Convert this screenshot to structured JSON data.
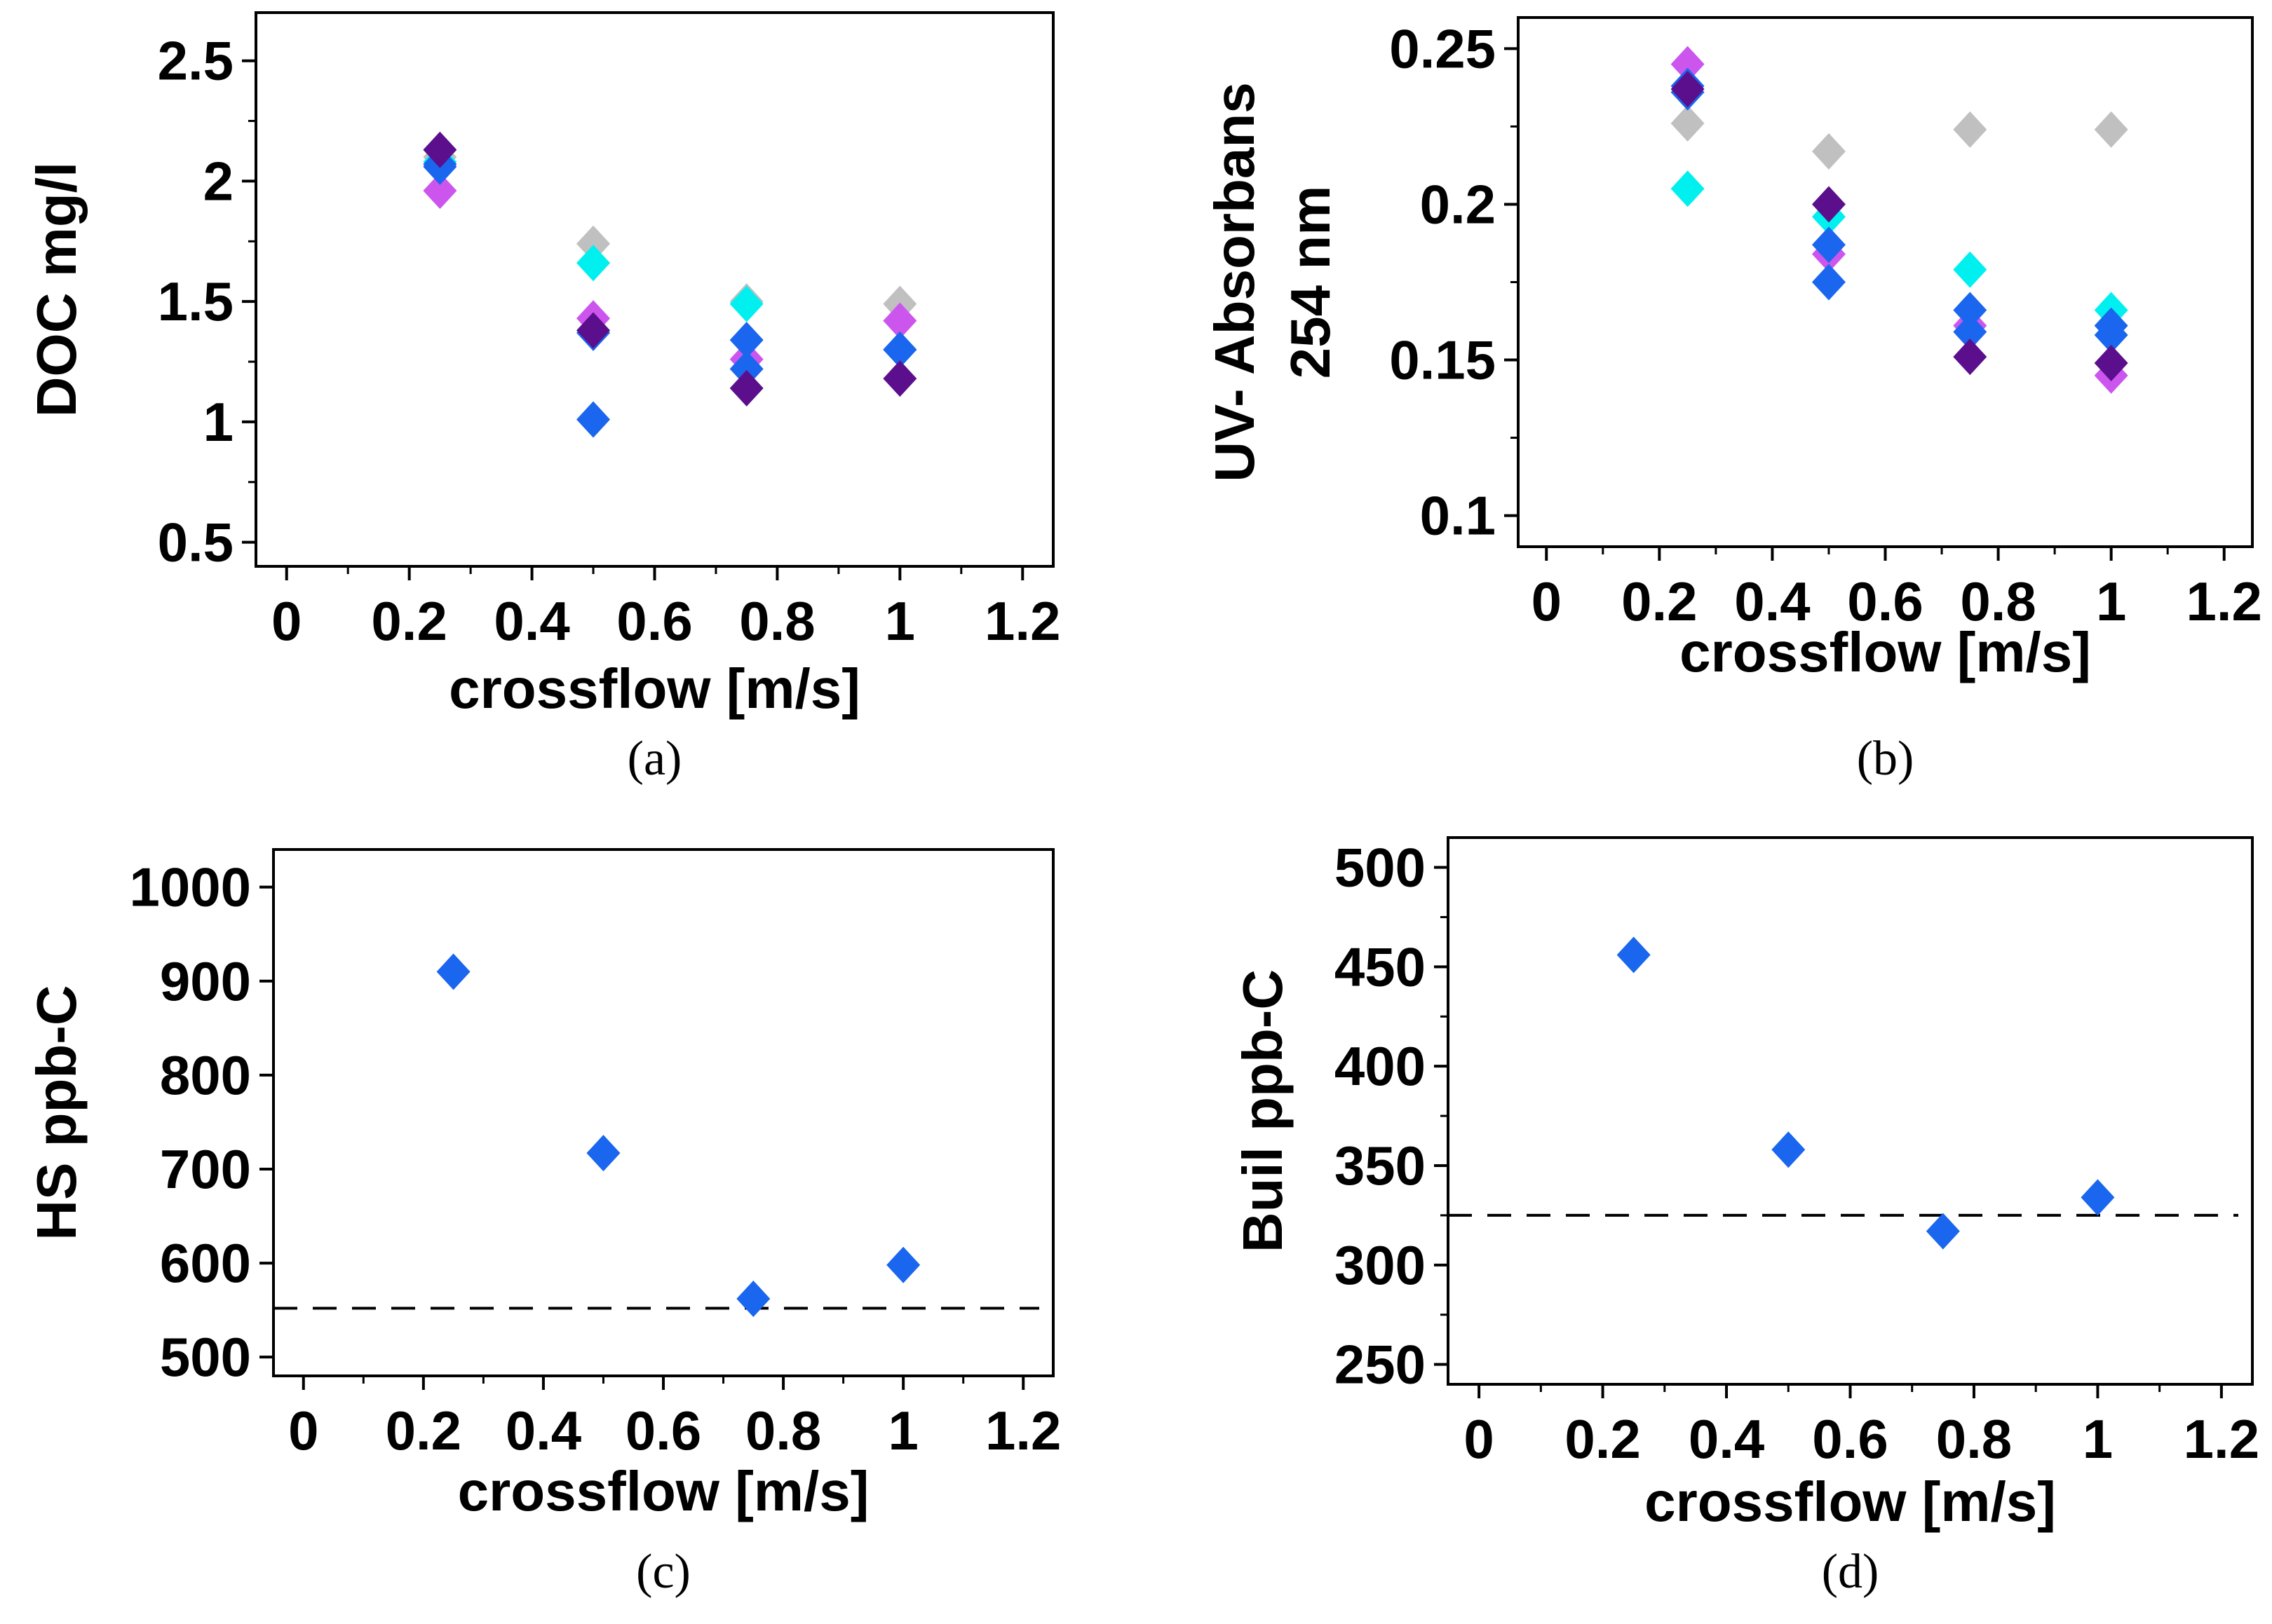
{
  "chart_data": [
    {
      "type": "scatter",
      "panel": "(a)",
      "xlabel": "crossflow [m/s]",
      "ylabel": "DOC mg/l",
      "xlim": [
        -0.05,
        1.25
      ],
      "ylim": [
        0.4,
        2.7
      ],
      "xticks": [
        "0",
        "0.2",
        "0.4",
        "0.6",
        "0.8",
        "1",
        "1.2"
      ],
      "xtick_values": [
        0,
        0.2,
        0.4,
        0.6,
        0.8,
        1,
        1.2
      ],
      "yticks": [
        "0.5",
        "1",
        "1.5",
        "2",
        "2.5"
      ],
      "ytick_values": [
        0.5,
        1,
        1.5,
        2,
        2.5
      ],
      "marker": "diamond",
      "grid": false,
      "series": [
        {
          "color": "#c0c0c0",
          "points": [
            [
              0.25,
              2.1
            ],
            [
              0.5,
              1.74
            ],
            [
              0.75,
              1.5
            ],
            [
              1.0,
              1.49
            ]
          ]
        },
        {
          "color": "#00f0f0",
          "points": [
            [
              0.25,
              2.08
            ],
            [
              0.5,
              1.66
            ],
            [
              0.75,
              1.49
            ],
            [
              1.0,
              1.3
            ]
          ]
        },
        {
          "color": "#cc55ee",
          "points": [
            [
              0.25,
              1.96
            ],
            [
              0.5,
              1.43
            ],
            [
              0.75,
              1.26
            ],
            [
              1.0,
              1.42
            ]
          ]
        },
        {
          "color": "#1a66ee",
          "points": [
            [
              0.25,
              2.07
            ],
            [
              0.5,
              1.37
            ],
            [
              0.75,
              1.34
            ],
            [
              1.0,
              1.3
            ]
          ]
        },
        {
          "color": "#1a66ee",
          "points": [
            [
              0.25,
              2.06
            ],
            [
              0.5,
              1.01
            ],
            [
              0.75,
              1.22
            ],
            [
              1.0,
              1.3
            ]
          ]
        },
        {
          "color": "#5b0f8c",
          "points": [
            [
              0.25,
              2.13
            ],
            [
              0.5,
              1.38
            ],
            [
              0.75,
              1.14
            ],
            [
              1.0,
              1.18
            ]
          ]
        }
      ],
      "caption": "(a)"
    },
    {
      "type": "scatter",
      "panel": "(b)",
      "xlabel": "crossflow [m/s]",
      "ylabel": "UV- Absorbans",
      "ylabel2": "254 nm",
      "xlim": [
        -0.05,
        1.25
      ],
      "ylim": [
        0.09,
        0.26
      ],
      "xticks": [
        "0",
        "0.2",
        "0.4",
        "0.6",
        "0.8",
        "1",
        "1.2"
      ],
      "xtick_values": [
        0,
        0.2,
        0.4,
        0.6,
        0.8,
        1,
        1.2
      ],
      "yticks": [
        "0.1",
        "0.15",
        "0.2",
        "0.25"
      ],
      "ytick_values": [
        0.1,
        0.15,
        0.2,
        0.25
      ],
      "marker": "diamond",
      "grid": false,
      "series": [
        {
          "color": "#c0c0c0",
          "points": [
            [
              0.25,
              0.226
            ],
            [
              0.5,
              0.217
            ],
            [
              0.75,
              0.224
            ],
            [
              1.0,
              0.224
            ]
          ]
        },
        {
          "color": "#00f0f0",
          "points": [
            [
              0.25,
              0.205
            ],
            [
              0.5,
              0.196
            ],
            [
              0.75,
              0.179
            ],
            [
              1.0,
              0.166
            ]
          ]
        },
        {
          "color": "#cc55ee",
          "points": [
            [
              0.25,
              0.245
            ],
            [
              0.5,
              0.184
            ],
            [
              0.75,
              0.161
            ],
            [
              1.0,
              0.145
            ]
          ]
        },
        {
          "color": "#1a66ee",
          "points": [
            [
              0.25,
              0.238
            ],
            [
              0.5,
              0.187
            ],
            [
              0.75,
              0.166
            ],
            [
              1.0,
              0.161
            ]
          ]
        },
        {
          "color": "#1a66ee",
          "points": [
            [
              0.25,
              0.236
            ],
            [
              0.5,
              0.175
            ],
            [
              0.75,
              0.159
            ],
            [
              1.0,
              0.158
            ]
          ]
        },
        {
          "color": "#5b0f8c",
          "points": [
            [
              0.25,
              0.237
            ],
            [
              0.5,
              0.2
            ],
            [
              0.75,
              0.151
            ],
            [
              1.0,
              0.149
            ]
          ]
        }
      ],
      "caption": "(b)"
    },
    {
      "type": "scatter",
      "panel": "(c)",
      "xlabel": "crossflow [m/s]",
      "ylabel": "HS ppb-C",
      "xlim": [
        -0.05,
        1.25
      ],
      "ylim": [
        480,
        1040
      ],
      "xticks": [
        "0",
        "0.2",
        "0.4",
        "0.6",
        "0.8",
        "1",
        "1.2"
      ],
      "xtick_values": [
        0,
        0.2,
        0.4,
        0.6,
        0.8,
        1,
        1.2
      ],
      "yticks": [
        "500",
        "600",
        "700",
        "800",
        "900",
        "1000"
      ],
      "ytick_values": [
        500,
        600,
        700,
        800,
        900,
        1000
      ],
      "marker": "diamond",
      "grid": false,
      "reference_line": 552,
      "series": [
        {
          "color": "#1a66ee",
          "points": [
            [
              0.25,
              910
            ],
            [
              0.5,
              717
            ],
            [
              0.75,
              562
            ],
            [
              1.0,
              598
            ]
          ]
        }
      ],
      "caption": "(c)"
    },
    {
      "type": "scatter",
      "panel": "(d)",
      "xlabel": "crossflow [m/s]",
      "ylabel": "Buil ppb-C",
      "xlim": [
        -0.05,
        1.25
      ],
      "ylim": [
        240,
        515
      ],
      "xticks": [
        "0",
        "0.2",
        "0.4",
        "0.6",
        "0.8",
        "1",
        "1.2"
      ],
      "xtick_values": [
        0,
        0.2,
        0.4,
        0.6,
        0.8,
        1,
        1.2
      ],
      "yticks": [
        "250",
        "300",
        "350",
        "400",
        "450",
        "500"
      ],
      "ytick_values": [
        250,
        300,
        350,
        400,
        450,
        500
      ],
      "marker": "diamond",
      "grid": false,
      "reference_line": 325,
      "series": [
        {
          "color": "#1a66ee",
          "points": [
            [
              0.25,
              456
            ],
            [
              0.5,
              358
            ],
            [
              0.75,
              317
            ],
            [
              1.0,
              334
            ]
          ]
        }
      ],
      "caption": "(d)"
    }
  ]
}
